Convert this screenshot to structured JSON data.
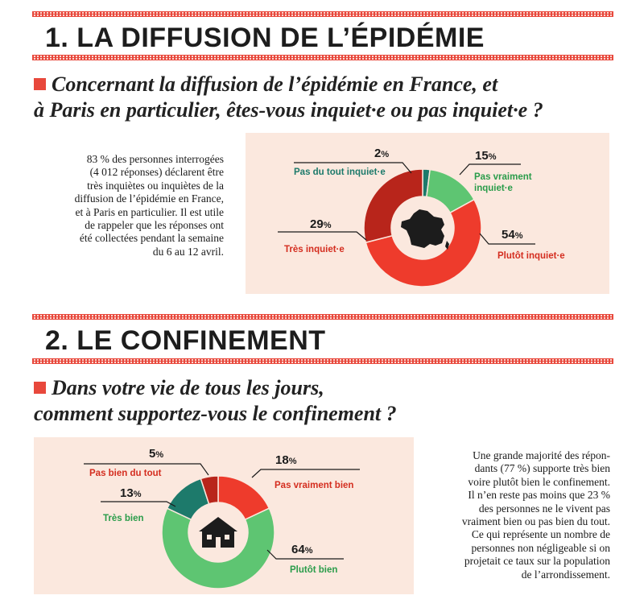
{
  "section1": {
    "title": "1. LA DIFFUSION DE L’ÉPIDÉMIE",
    "question_line1": "Concernant la diffusion de l’épidémie en France, et",
    "question_line2": "à Paris en particulier, êtes-vous inquiet·e ou pas inquiet·e ?",
    "text_lines": [
      "83 % des personnes interrogées",
      "(4 012 réponses) déclarent être",
      "très inquiètes ou inquiètes de la",
      "diffusion de l’épidémie en France,",
      "et à Paris en particulier. Il est utile",
      "de rappeler que les réponses ont",
      "été collectées pendant la semaine",
      "du 6 au 12 avril."
    ],
    "center_icon": "france-map-icon"
  },
  "section2": {
    "title": "2. LE CONFINEMENT",
    "question_line1": "Dans votre vie de tous les jours,",
    "question_line2": "comment supportez-vous le confinement ?",
    "text_lines": [
      "Une grande majorité des répon-",
      "dants (77 %) supporte très bien",
      "voire plutôt bien le confinement.",
      "Il n’en reste pas moins que 23 %",
      "des personnes ne le vivent pas",
      "vraiment bien ou pas bien du tout.",
      "Ce qui représente un nombre de",
      "personnes non négligeable si on",
      "projetait ce taux sur la population",
      "de l’arrondissement."
    ],
    "center_icon": "house-icon"
  },
  "colors": {
    "accent": "#e8483c",
    "panel_bg": "#fbe8de",
    "dark_red": "#b8251b",
    "bright_red": "#ee3b2c",
    "light_green": "#5ec572",
    "teal": "#1d7a6b",
    "green_text": "#2a9c4a",
    "red_text": "#d42d1f"
  },
  "chart_data": [
    {
      "type": "pie",
      "variant": "donut",
      "unit": "%",
      "categories": [
        "Pas du tout inquiet·e",
        "Pas vraiment inquiet·e",
        "Plutôt inquiet·e",
        "Très inquiet·e"
      ],
      "values": [
        2,
        15,
        54,
        29
      ],
      "colors": [
        "#1d7a6b",
        "#5ec572",
        "#ee3b2c",
        "#b8251b"
      ],
      "label_colors": [
        "#1d7a6b",
        "#2a9c4a",
        "#d42d1f",
        "#d42d1f"
      ]
    },
    {
      "type": "pie",
      "variant": "donut",
      "unit": "%",
      "categories": [
        "Pas vraiment bien",
        "Plutôt bien",
        "Très bien",
        "Pas bien du tout"
      ],
      "values": [
        18,
        64,
        13,
        5
      ],
      "colors": [
        "#ee3b2c",
        "#5ec572",
        "#1d7a6b",
        "#b8251b"
      ],
      "label_colors": [
        "#d42d1f",
        "#2a9c4a",
        "#2a9c4a",
        "#d42d1f"
      ]
    }
  ]
}
